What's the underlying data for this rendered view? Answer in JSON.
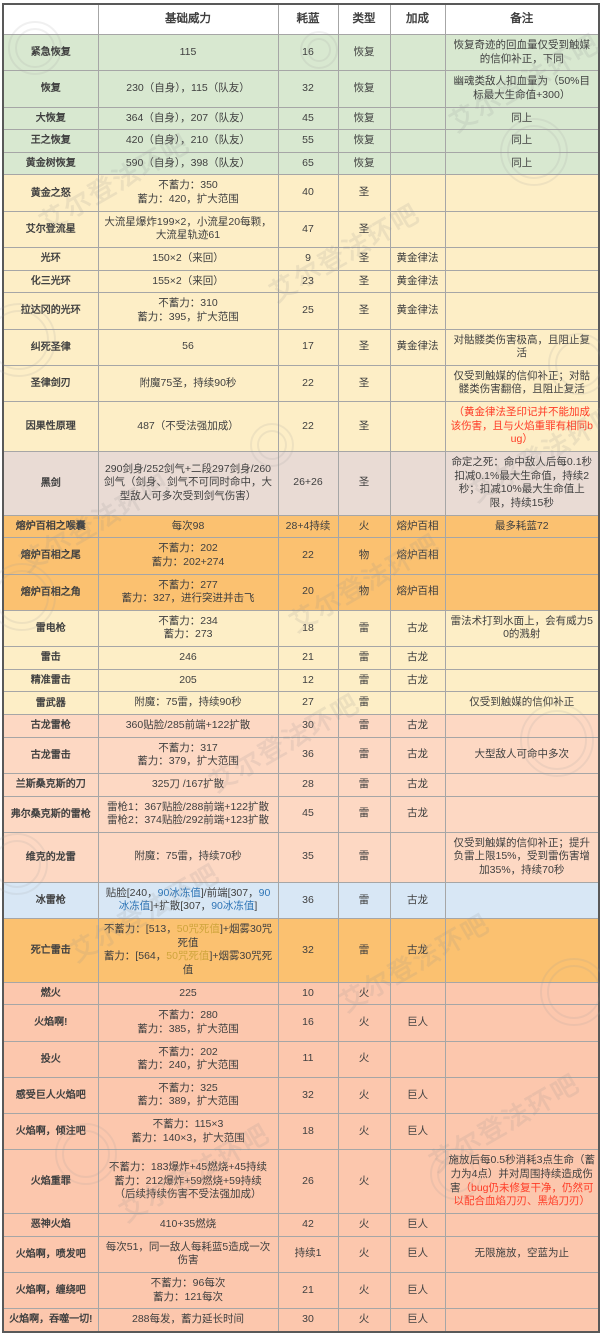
{
  "watermark": {
    "text": "艾尔登法环吧"
  },
  "colors": {
    "themes": {
      "green": "#d8e8d0",
      "cream": "#fdeec6",
      "mauve": "#e9dbd4",
      "orange": "#fbc170",
      "salmon": "#fdd8c3",
      "blue": "#d8e7f5",
      "fire": "#fcc7ad"
    },
    "note_red": "#fe3b26",
    "frost_blue": "#2e75b6",
    "death_gold": "#cfa53d",
    "border_inner": "#a6a6a6",
    "border_outer": "#595959"
  },
  "table": {
    "header": [
      "",
      "基础威力",
      "耗蓝",
      "类型",
      "加成",
      "备注"
    ],
    "rows": [
      {
        "name": "紧急恢复",
        "power": "115",
        "fp": "16",
        "type": "恢复",
        "scaling": "",
        "note": "恢复奇迹的回血量仅受到触媒的信仰补正，下同",
        "theme": "green"
      },
      {
        "name": "恢复",
        "power": "230（自身），115（队友）",
        "fp": "32",
        "type": "恢复",
        "scaling": "",
        "note": "幽魂类敌人扣血量为（50%目标最大生命值+300）",
        "theme": "green"
      },
      {
        "name": "大恢复",
        "power": "364（自身），207（队友）",
        "fp": "45",
        "type": "恢复",
        "scaling": "",
        "note": "同上",
        "theme": "green"
      },
      {
        "name": "王之恢复",
        "power": "420（自身），210（队友）",
        "fp": "55",
        "type": "恢复",
        "scaling": "",
        "note": "同上",
        "theme": "green"
      },
      {
        "name": "黄金树恢复",
        "power": "590（自身），398（队友）",
        "fp": "65",
        "type": "恢复",
        "scaling": "",
        "note": "同上",
        "theme": "green"
      },
      {
        "name": "黄金之怒",
        "power": "不蓄力：350\n蓄力：420，扩大范围",
        "fp": "40",
        "type": "圣",
        "scaling": "",
        "note": "",
        "theme": "cream"
      },
      {
        "name": "艾尔登流星",
        "power": "大流星爆炸199×2，小流星20每颗，大流星轨迹61",
        "fp": "47",
        "type": "圣",
        "scaling": "",
        "note": "",
        "theme": "cream"
      },
      {
        "name": "光环",
        "power": "150×2（来回）",
        "fp": "9",
        "type": "圣",
        "scaling": "黄金律法",
        "note": "",
        "theme": "cream"
      },
      {
        "name": "化三光环",
        "power": "155×2（来回）",
        "fp": "23",
        "type": "圣",
        "scaling": "黄金律法",
        "note": "",
        "theme": "cream"
      },
      {
        "name": "拉达冈的光环",
        "power": "不蓄力：310\n蓄力：395，扩大范围",
        "fp": "25",
        "type": "圣",
        "scaling": "黄金律法",
        "note": "",
        "theme": "cream"
      },
      {
        "name": "纠死圣律",
        "power": "56",
        "fp": "17",
        "type": "圣",
        "scaling": "黄金律法",
        "note": "对骷髅类伤害极高，且阻止复活",
        "theme": "cream"
      },
      {
        "name": "圣律剑刃",
        "power": "附魔75圣，持续90秒",
        "fp": "22",
        "type": "圣",
        "scaling": "",
        "note": "仅受到触媒的信仰补正；对骷髅类伤害翻倍，且阻止复活",
        "theme": "cream"
      },
      {
        "name": "因果性原理",
        "power": "487（不受法强加成）",
        "fp": "22",
        "type": "圣",
        "scaling": "",
        "note": [
          {
            "t": "（黄金律法圣印记并不能加成该伤害，且与火焰重罪有相同bug）",
            "c": "#fe3b26"
          }
        ],
        "theme": "cream"
      },
      {
        "name": "黑剑",
        "power": "290剑身/252剑气+二段297剑身/260剑气（剑身、剑气不可同时命中，大型敌人可多次受到剑气伤害）",
        "fp": "26+26",
        "type": "圣",
        "scaling": "",
        "note": "命定之死：命中敌人后每0.1秒扣减0.1%最大生命值，持续2秒；扣减10%最大生命值上限，持续15秒",
        "theme": "mauve"
      },
      {
        "name": "熔炉百相之喉囊",
        "power": "每次98",
        "fp": "28+4持续",
        "type": "火",
        "scaling": "熔炉百相",
        "note": "最多耗蓝72",
        "theme": "orange"
      },
      {
        "name": "熔炉百相之尾",
        "power": "不蓄力：202\n蓄力：202+274",
        "fp": "22",
        "type": "物",
        "scaling": "熔炉百相",
        "note": "",
        "theme": "orange"
      },
      {
        "name": "熔炉百相之角",
        "power": "不蓄力：277\n蓄力：327，进行突进并击飞",
        "fp": "20",
        "type": "物",
        "scaling": "熔炉百相",
        "note": "",
        "theme": "orange"
      },
      {
        "name": "雷电枪",
        "power": "不蓄力：234\n蓄力：273",
        "fp": "18",
        "type": "雷",
        "scaling": "古龙",
        "note": "雷法术打到水面上，会有威力50的溅射",
        "theme": "cream"
      },
      {
        "name": "雷击",
        "power": "246",
        "fp": "21",
        "type": "雷",
        "scaling": "古龙",
        "note": "",
        "theme": "cream"
      },
      {
        "name": "精准雷击",
        "power": "205",
        "fp": "12",
        "type": "雷",
        "scaling": "古龙",
        "note": "",
        "theme": "cream"
      },
      {
        "name": "雷武器",
        "power": "附魔：75雷，持续90秒",
        "fp": "27",
        "type": "雷",
        "scaling": "",
        "note": "仅受到触媒的信仰补正",
        "theme": "cream"
      },
      {
        "name": "古龙雷枪",
        "power": "360贴脸/285前端+122扩散",
        "fp": "30",
        "type": "雷",
        "scaling": "古龙",
        "note": "",
        "theme": "salmon"
      },
      {
        "name": "古龙雷击",
        "power": "不蓄力：317\n蓄力：379，扩大范围",
        "fp": "36",
        "type": "雷",
        "scaling": "古龙",
        "note": "大型敌人可命中多次",
        "theme": "salmon"
      },
      {
        "name": "兰斯桑克斯的刀",
        "power": "325刀 /167扩散",
        "fp": "28",
        "type": "雷",
        "scaling": "古龙",
        "note": "",
        "theme": "salmon"
      },
      {
        "name": "弗尔桑克斯的雷枪",
        "power": "雷枪1：367贴脸/288前端+122扩散\n雷枪2：374贴脸/292前端+123扩散",
        "fp": "45",
        "type": "雷",
        "scaling": "古龙",
        "note": "",
        "theme": "salmon"
      },
      {
        "name": "维克的龙雷",
        "power": "附魔：75雷，持续70秒",
        "fp": "35",
        "type": "雷",
        "scaling": "",
        "note": "仅受到触媒的信仰补正；提升负雷上限15%，受到雷伤害增加35%，持续70秒",
        "theme": "salmon"
      },
      {
        "name": "冰雷枪",
        "power": [
          {
            "t": "贴脸[240，"
          },
          {
            "t": "90冰冻值",
            "c": "#2e75b6"
          },
          {
            "t": "]/前端[307，"
          },
          {
            "t": "90冰冻值",
            "c": "#2e75b6"
          },
          {
            "t": "]+扩散[307，"
          },
          {
            "t": "90冰冻值",
            "c": "#2e75b6"
          },
          {
            "t": "]"
          }
        ],
        "fp": "36",
        "type": "雷",
        "scaling": "古龙",
        "note": "",
        "theme": "blue"
      },
      {
        "name": "死亡雷击",
        "power": [
          {
            "t": "不蓄力：[513，"
          },
          {
            "t": "50咒死值",
            "c": "#cfa53d"
          },
          {
            "t": "]+烟雾30咒死值\n蓄力：[564，"
          },
          {
            "t": "50咒死值",
            "c": "#cfa53d"
          },
          {
            "t": "]+烟雾30咒死值"
          }
        ],
        "fp": "32",
        "type": "雷",
        "scaling": "古龙",
        "note": "",
        "theme": "orange"
      },
      {
        "name": "燃火",
        "power": "225",
        "fp": "10",
        "type": "火",
        "scaling": "",
        "note": "",
        "theme": "fire"
      },
      {
        "name": "火焰啊!",
        "power": "不蓄力：280\n蓄力：385，扩大范围",
        "fp": "16",
        "type": "火",
        "scaling": "巨人",
        "note": "",
        "theme": "fire"
      },
      {
        "name": "投火",
        "power": "不蓄力：202\n蓄力：240，扩大范围",
        "fp": "11",
        "type": "火",
        "scaling": "",
        "note": "",
        "theme": "fire"
      },
      {
        "name": "感受巨人火焰吧",
        "power": "不蓄力：325\n蓄力：389，扩大范围",
        "fp": "32",
        "type": "火",
        "scaling": "巨人",
        "note": "",
        "theme": "fire"
      },
      {
        "name": "火焰啊，倾注吧",
        "power": "不蓄力：115×3\n蓄力：140×3，扩大范围",
        "fp": "18",
        "type": "火",
        "scaling": "巨人",
        "note": "",
        "theme": "fire"
      },
      {
        "name": "火焰重罪",
        "power": "不蓄力：183爆炸+45燃烧+45持续\n蓄力：212爆炸+59燃烧+59持续\n（后续持续伤害不受法强加成）",
        "fp": "26",
        "type": "火",
        "scaling": "",
        "note": [
          {
            "t": "施放后每0.5秒消耗3点生命（蓄力为4点）并对周围持续造成伤害"
          },
          {
            "t": "（bug仍未修复干净，仍然可以配合血焰刀刃、黑焰刀刃）",
            "c": "#fe3b26"
          }
        ],
        "theme": "fire"
      },
      {
        "name": "恶神火焰",
        "power": "410+35燃烧",
        "fp": "42",
        "type": "火",
        "scaling": "巨人",
        "note": "",
        "theme": "fire"
      },
      {
        "name": "火焰啊，喷发吧",
        "power": "每次51，同一敌人每耗蓝5造成一次伤害",
        "fp": "持续1",
        "type": "火",
        "scaling": "巨人",
        "note": "无限施放，空蓝为止",
        "theme": "fire"
      },
      {
        "name": "火焰啊，缠绕吧",
        "power": "不蓄力：96每次\n蓄力：121每次",
        "fp": "21",
        "type": "火",
        "scaling": "巨人",
        "note": "",
        "theme": "fire"
      },
      {
        "name": "火焰啊，吞噬一切!",
        "power": "288每发，蓄力延长时间",
        "fp": "30",
        "type": "火",
        "scaling": "巨人",
        "note": "",
        "theme": "fire"
      }
    ]
  }
}
